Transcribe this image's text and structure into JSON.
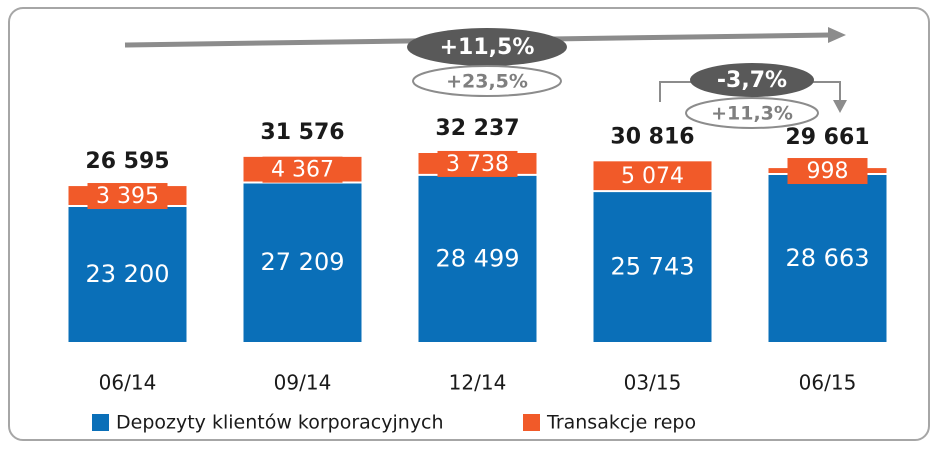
{
  "chart_data": {
    "type": "stacked_bar",
    "categories": [
      "06/14",
      "09/14",
      "12/14",
      "03/15",
      "06/15"
    ],
    "series": [
      {
        "name": "Depozyty klientów korporacyjnych",
        "color": "#0a6fb8",
        "values": [
          23200,
          27209,
          28499,
          25743,
          28663
        ],
        "value_labels": [
          "23 200",
          "27 209",
          "28 499",
          "25 743",
          "28 663"
        ]
      },
      {
        "name": "Transakcje repo",
        "color": "#f15a29",
        "values": [
          3395,
          4367,
          3738,
          5074,
          998
        ],
        "value_labels": [
          "3 395",
          "4 367",
          "3 738",
          "5 074",
          "998"
        ]
      }
    ],
    "totals": [
      26595,
      31576,
      32237,
      30816,
      29661
    ],
    "total_labels": [
      "26 595",
      "31 576",
      "32 237",
      "30 816",
      "29 661"
    ],
    "annotations": [
      "+11,5%",
      "+23,5%",
      "-3,7%",
      "+11,3%"
    ]
  }
}
